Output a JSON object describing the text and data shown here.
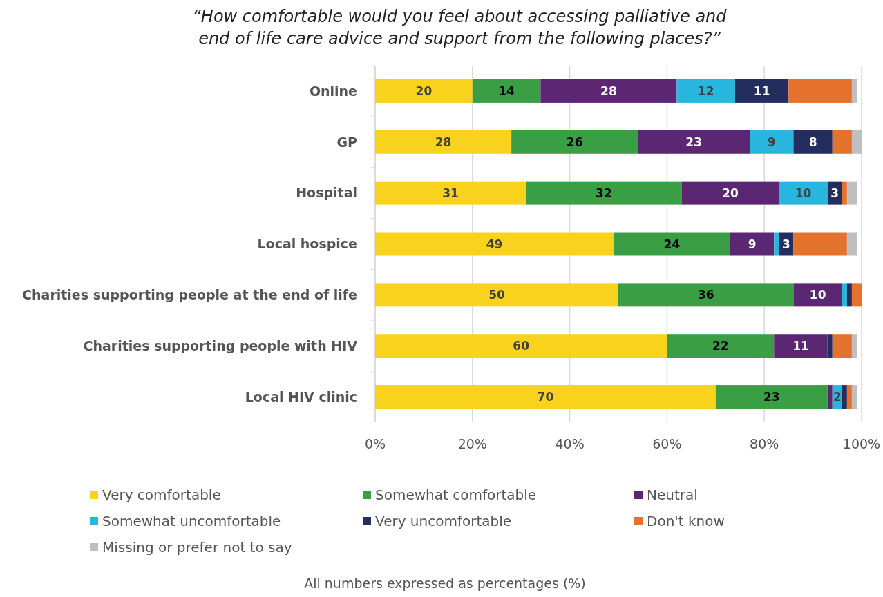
{
  "chart_data": {
    "type": "bar",
    "orientation": "horizontal",
    "stacked": true,
    "title": "“How comfortable would you feel about accessing palliative and end of life care advice and support from the following places?”",
    "categories": [
      "Online",
      "GP",
      "Hospital",
      "Local hospice",
      "Charities supporting people at the end of life",
      "Charities supporting people with HIV",
      "Local HIV clinic"
    ],
    "series": [
      {
        "name": "Very comfortable",
        "color": "#f8d21c",
        "values": [
          20,
          28,
          31,
          49,
          50,
          60,
          70
        ],
        "value_labels": [
          "20",
          "28",
          "31",
          "49",
          "50",
          "60",
          "70"
        ]
      },
      {
        "name": "Somewhat comfortable",
        "color": "#3a9e45",
        "values": [
          14,
          26,
          32,
          24,
          36,
          22,
          23
        ],
        "value_labels": [
          "14",
          "26",
          "32",
          "24",
          "36",
          "22",
          "23"
        ]
      },
      {
        "name": "Neutral",
        "color": "#5b2672",
        "values": [
          28,
          23,
          20,
          9,
          10,
          11,
          1
        ],
        "value_labels": [
          "28",
          "23",
          "20",
          "9",
          "10",
          "11",
          null
        ]
      },
      {
        "name": "Somewhat uncomfortable",
        "color": "#29b6de",
        "values": [
          12,
          9,
          10,
          1,
          1,
          0,
          2
        ],
        "value_labels": [
          "12",
          "9",
          "10",
          null,
          null,
          null,
          "2"
        ]
      },
      {
        "name": "Very uncomfortable",
        "color": "#232e5e",
        "values": [
          11,
          8,
          3,
          3,
          1,
          1,
          1
        ],
        "value_labels": [
          "11",
          "8",
          "3",
          "3",
          null,
          null,
          null
        ]
      },
      {
        "name": "Don't know",
        "color": "#e5722c",
        "values": [
          13,
          4,
          1,
          11,
          2,
          4,
          1
        ],
        "value_labels": [
          null,
          null,
          null,
          null,
          null,
          null,
          null
        ]
      },
      {
        "name": "Missing or prefer not to say",
        "color": "#bfbfbf",
        "values": [
          1,
          2,
          2,
          2,
          0,
          1,
          1
        ],
        "value_labels": [
          null,
          null,
          null,
          null,
          null,
          null,
          null
        ]
      }
    ],
    "xlim": [
      0,
      100
    ],
    "xticks": [
      {
        "value": 0,
        "label": "0%"
      },
      {
        "value": 20,
        "label": "20%"
      },
      {
        "value": 40,
        "label": "40%"
      },
      {
        "value": 60,
        "label": "60%"
      },
      {
        "value": 80,
        "label": "80%"
      },
      {
        "value": 100,
        "label": "100%"
      }
    ],
    "grid": "x",
    "legend": "bottom",
    "annotations": [
      "All numbers expressed as percentages (%)"
    ]
  }
}
